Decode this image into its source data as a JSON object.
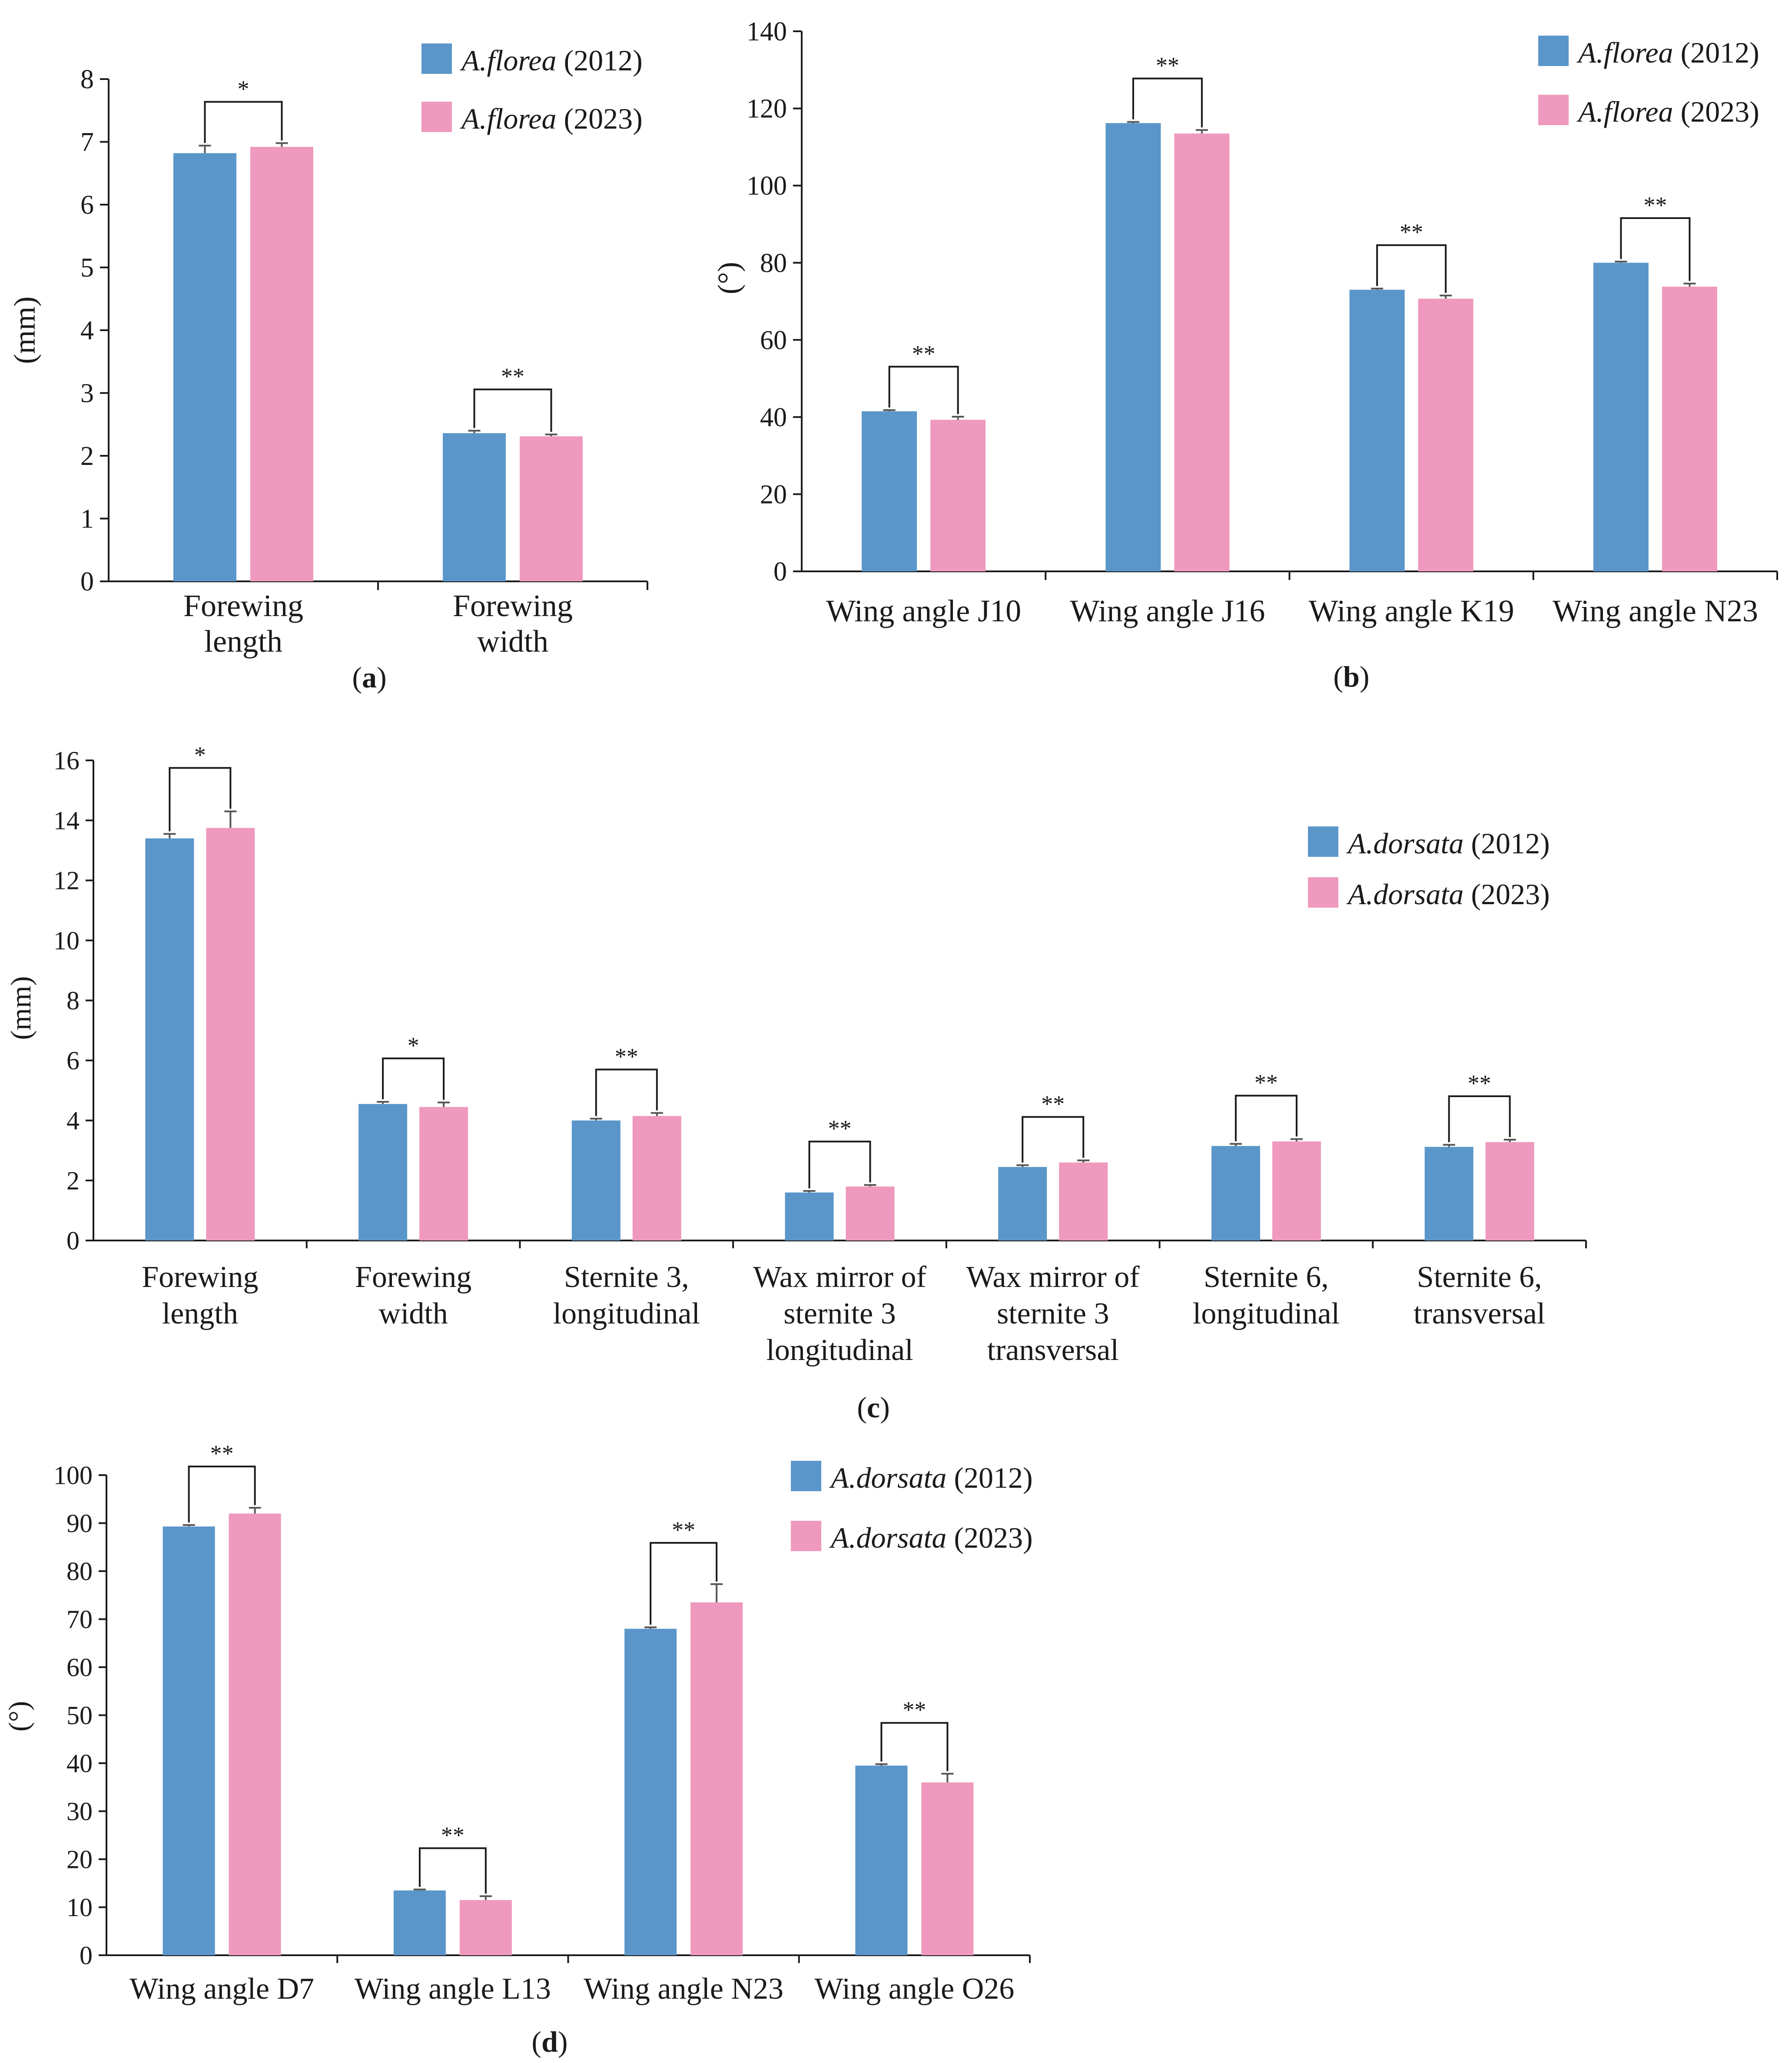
{
  "colors": {
    "series_2012": "#5a96c9",
    "series_2023": "#ef99be",
    "axis": "#1a1a1a",
    "error": "#555555"
  },
  "chart_data": [
    {
      "id": "a",
      "type": "bar",
      "panel_label": "a",
      "ylabel": "(mm)",
      "ylim": [
        0,
        8
      ],
      "yticks": [
        0,
        1,
        2,
        3,
        4,
        5,
        6,
        7,
        8
      ],
      "categories": [
        [
          "Forewing",
          "length"
        ],
        [
          "Forewing",
          "width"
        ]
      ],
      "series": [
        {
          "name_italic": "A.florea",
          "name_suffix": " (2012)",
          "values": [
            6.82,
            2.36
          ],
          "errors": [
            0.12,
            0.04
          ]
        },
        {
          "name_italic": "A.florea",
          "name_suffix": " (2023)",
          "values": [
            6.92,
            2.31
          ],
          "errors": [
            0.06,
            0.03
          ]
        }
      ],
      "significance": [
        "*",
        "**"
      ],
      "legend_position": "top-right"
    },
    {
      "id": "b",
      "type": "bar",
      "panel_label": "b",
      "ylabel": "(°)",
      "ylim": [
        0,
        140
      ],
      "yticks": [
        0,
        20,
        40,
        60,
        80,
        100,
        120,
        140
      ],
      "categories": [
        [
          "Wing angle J10"
        ],
        [
          "Wing angle J16"
        ],
        [
          "Wing angle K19"
        ],
        [
          "Wing angle N23"
        ]
      ],
      "series": [
        {
          "name_italic": "A.florea",
          "name_suffix": " (2012)",
          "values": [
            41.5,
            116.2,
            73.0,
            80.0
          ],
          "errors": [
            0.3,
            0.3,
            0.3,
            0.3
          ]
        },
        {
          "name_italic": "A.florea",
          "name_suffix": " (2023)",
          "values": [
            39.3,
            113.5,
            70.7,
            73.8
          ],
          "errors": [
            0.8,
            0.9,
            0.8,
            0.8
          ]
        }
      ],
      "significance": [
        "**",
        "**",
        "**",
        "**"
      ],
      "legend_position": "top-right"
    },
    {
      "id": "c",
      "type": "bar",
      "panel_label": "c",
      "ylabel": "(mm)",
      "ylim": [
        0,
        16
      ],
      "yticks": [
        0,
        2,
        4,
        6,
        8,
        10,
        12,
        14,
        16
      ],
      "categories": [
        [
          "Forewing",
          "length"
        ],
        [
          "Forewing",
          "width"
        ],
        [
          "Sternite 3,",
          "longitudinal"
        ],
        [
          "Wax mirror of",
          "sternite 3",
          "longitudinal"
        ],
        [
          "Wax mirror of",
          "sternite 3",
          "transversal"
        ],
        [
          "Sternite 6,",
          "longitudinal"
        ],
        [
          "Sternite 6,",
          "transversal"
        ]
      ],
      "series": [
        {
          "name_italic": "A.dorsata",
          "name_suffix": " (2012)",
          "values": [
            13.4,
            4.55,
            4.0,
            1.6,
            2.45,
            3.15,
            3.12
          ],
          "errors": [
            0.15,
            0.07,
            0.06,
            0.05,
            0.06,
            0.07,
            0.07
          ]
        },
        {
          "name_italic": "A.dorsata",
          "name_suffix": " (2023)",
          "values": [
            13.75,
            4.45,
            4.15,
            1.8,
            2.6,
            3.3,
            3.28
          ],
          "errors": [
            0.55,
            0.15,
            0.1,
            0.05,
            0.07,
            0.08,
            0.08
          ]
        }
      ],
      "significance": [
        "*",
        "*",
        "**",
        "**",
        "**",
        "**",
        "**"
      ],
      "legend_position": "right"
    },
    {
      "id": "d",
      "type": "bar",
      "panel_label": "d",
      "ylabel": "(°)",
      "ylim": [
        0,
        100
      ],
      "yticks": [
        0,
        10,
        20,
        30,
        40,
        50,
        60,
        70,
        80,
        90,
        100
      ],
      "categories": [
        [
          "Wing angle D7"
        ],
        [
          "Wing angle L13"
        ],
        [
          "Wing angle N23"
        ],
        [
          "Wing angle O26"
        ]
      ],
      "series": [
        {
          "name_italic": "A.dorsata",
          "name_suffix": " (2012)",
          "values": [
            89.3,
            13.5,
            68.0,
            39.5
          ],
          "errors": [
            0.3,
            0.2,
            0.3,
            0.3
          ]
        },
        {
          "name_italic": "A.dorsata",
          "name_suffix": " (2023)",
          "values": [
            92.0,
            11.5,
            73.5,
            36.0
          ],
          "errors": [
            1.2,
            0.8,
            3.8,
            1.8
          ]
        }
      ],
      "significance": [
        "**",
        "**",
        "**",
        "**"
      ],
      "legend_position": "top-right"
    }
  ]
}
